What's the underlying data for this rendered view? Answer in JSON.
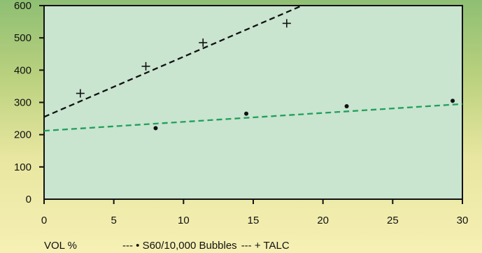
{
  "chart_data": {
    "type": "scatter",
    "xlim": [
      0,
      30
    ],
    "ylim": [
      0,
      600
    ],
    "x_ticks": [
      0,
      5,
      10,
      15,
      20,
      25,
      30
    ],
    "y_ticks": [
      0,
      100,
      200,
      300,
      400,
      500,
      600
    ],
    "xlabel": "VOL %",
    "grid": false,
    "legend_position": "bottom",
    "series": [
      {
        "name": "S60/10,000 Bubbles",
        "marker": "dot",
        "legend_label": "--- • S60/10,000 Bubbles",
        "color": "#1fa05a",
        "points": [
          [
            8,
            220
          ],
          [
            14.5,
            265
          ],
          [
            21.7,
            288
          ],
          [
            29.3,
            305
          ]
        ],
        "trend": [
          [
            0,
            212
          ],
          [
            30,
            295
          ]
        ]
      },
      {
        "name": "TALC",
        "marker": "plus",
        "legend_label": "--- + TALC",
        "color": "#111111",
        "points": [
          [
            2.6,
            328
          ],
          [
            7.3,
            412
          ],
          [
            11.4,
            485
          ],
          [
            17.4,
            545
          ]
        ],
        "trend": [
          [
            0,
            255
          ],
          [
            18.5,
            600
          ]
        ]
      }
    ],
    "colors": {
      "axis": "#111111",
      "plot_background": "#c9e4cf"
    }
  }
}
